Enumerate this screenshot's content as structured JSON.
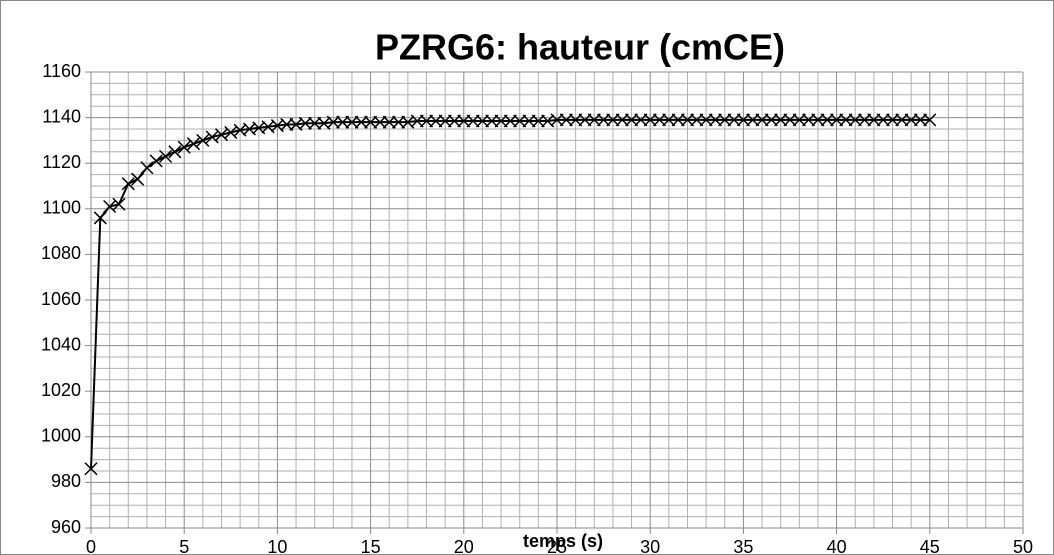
{
  "chart_data": {
    "type": "line",
    "title": "PZRG6: hauteur (cmCE)",
    "x_label": "temps (s)",
    "x": [
      0,
      0.5,
      1,
      1.5,
      2,
      2.5,
      3,
      3.5,
      4,
      4.5,
      5,
      5.5,
      6,
      6.5,
      7,
      7.5,
      8,
      8.5,
      9,
      9.5,
      10,
      10.5,
      11,
      11.5,
      12,
      12.5,
      13,
      13.5,
      14,
      14.5,
      15,
      15.5,
      16,
      16.5,
      17,
      17.5,
      18,
      18.5,
      19,
      19.5,
      20,
      20.5,
      21,
      21.5,
      22,
      22.5,
      23,
      23.5,
      24,
      24.5,
      25,
      25.5,
      26,
      26.5,
      27,
      27.5,
      28,
      28.5,
      29,
      29.5,
      30,
      30.5,
      31,
      31.5,
      32,
      32.5,
      33,
      33.5,
      34,
      34.5,
      35,
      35.5,
      36,
      36.5,
      37,
      37.5,
      38,
      38.5,
      39,
      39.5,
      40,
      40.5,
      41,
      41.5,
      42,
      42.5,
      43,
      43.5,
      44,
      44.5,
      45
    ],
    "series": [
      {
        "color": "#000000",
        "values": [
          986,
          1096,
          1101,
          1102,
          1111,
          1113,
          1118,
          1121,
          1123,
          1125,
          1127,
          1128.5,
          1130,
          1131.5,
          1132.5,
          1133.5,
          1134.5,
          1135,
          1135.5,
          1136,
          1136.5,
          1137,
          1137,
          1137.5,
          1137.5,
          1137.5,
          1138,
          1138,
          1138,
          1138,
          1138,
          1138,
          1138,
          1138,
          1138,
          1138.5,
          1138.5,
          1138.5,
          1138.5,
          1138.5,
          1138.5,
          1138.5,
          1138.5,
          1138.5,
          1138.5,
          1138.5,
          1138.5,
          1138.5,
          1138.5,
          1138.5,
          1139,
          1139,
          1139,
          1139,
          1139,
          1139,
          1139,
          1139,
          1139,
          1139,
          1139,
          1139,
          1139,
          1139,
          1139,
          1139,
          1139,
          1139,
          1139,
          1139,
          1139,
          1139,
          1139,
          1139,
          1139,
          1139,
          1139,
          1139,
          1139,
          1139,
          1139,
          1139,
          1139,
          1139,
          1139,
          1139,
          1139,
          1139,
          1139,
          1139,
          1139
        ]
      }
    ],
    "xlim": [
      0,
      50
    ],
    "xticks": [
      0,
      5,
      10,
      15,
      20,
      25,
      30,
      35,
      40,
      45,
      50
    ],
    "ylim": [
      960,
      1160
    ],
    "yticks": [
      960,
      980,
      1000,
      1020,
      1040,
      1060,
      1080,
      1100,
      1120,
      1140,
      1160
    ],
    "grid": true
  }
}
